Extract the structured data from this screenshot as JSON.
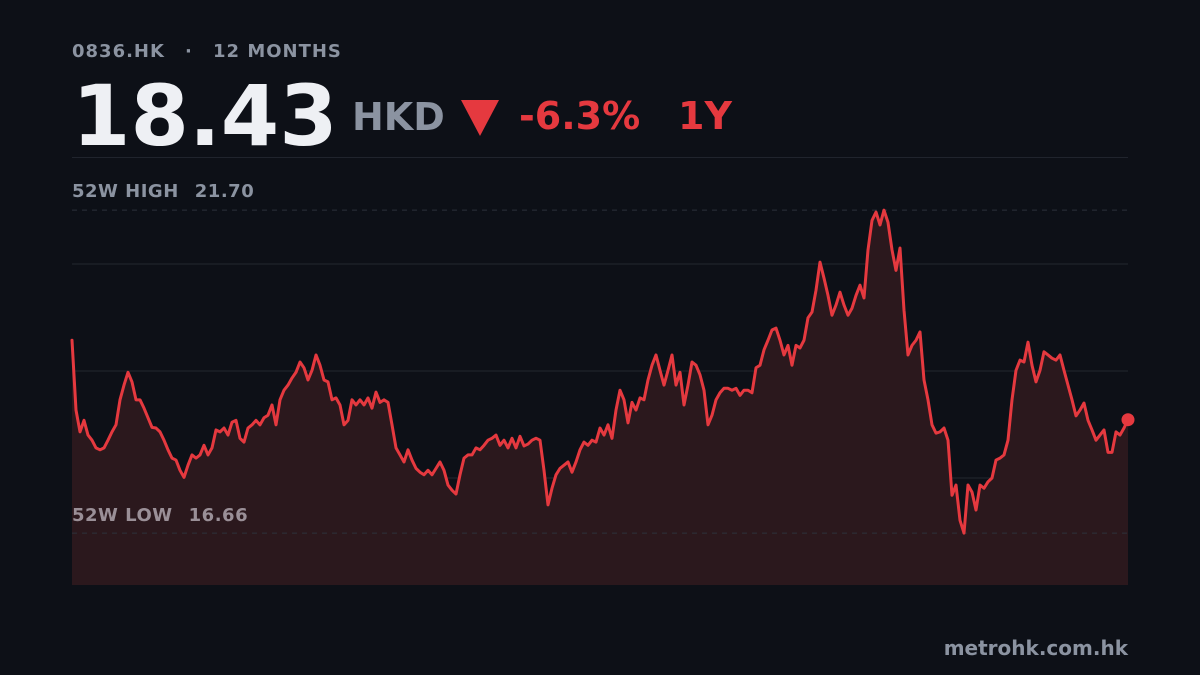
{
  "header": {
    "ticker": "0836.HK",
    "separator": "·",
    "period": "12 MONTHS",
    "price": "18.43",
    "currency": "HKD",
    "change": "-6.3%",
    "range": "1Y"
  },
  "chart_data": {
    "type": "line",
    "color": "#e5393f",
    "fill": "#2b181d",
    "values": [
      19.67,
      18.58,
      18.24,
      18.42,
      18.19,
      18.11,
      17.99,
      17.96,
      17.99,
      18.11,
      18.24,
      18.35,
      18.74,
      18.97,
      19.17,
      19.02,
      18.74,
      18.74,
      18.61,
      18.46,
      18.31,
      18.3,
      18.24,
      18.11,
      17.96,
      17.83,
      17.8,
      17.64,
      17.53,
      17.72,
      17.88,
      17.83,
      17.88,
      18.03,
      17.88,
      17.99,
      18.27,
      18.24,
      18.3,
      18.19,
      18.39,
      18.42,
      18.14,
      18.08,
      18.3,
      18.35,
      18.42,
      18.35,
      18.46,
      18.5,
      18.66,
      18.35,
      18.74,
      18.89,
      18.97,
      19.08,
      19.17,
      19.33,
      19.24,
      19.05,
      19.2,
      19.44,
      19.28,
      19.05,
      19.02,
      18.74,
      18.77,
      18.66,
      18.35,
      18.42,
      18.74,
      18.66,
      18.74,
      18.66,
      18.77,
      18.61,
      18.86,
      18.7,
      18.74,
      18.7,
      18.35,
      17.99,
      17.88,
      17.77,
      17.96,
      17.8,
      17.67,
      17.61,
      17.57,
      17.64,
      17.57,
      17.67,
      17.77,
      17.64,
      17.41,
      17.33,
      17.27,
      17.57,
      17.83,
      17.88,
      17.88,
      17.99,
      17.96,
      18.03,
      18.11,
      18.14,
      18.19,
      18.03,
      18.11,
      17.99,
      18.14,
      17.99,
      18.17,
      18.02,
      18.05,
      18.11,
      18.14,
      18.11,
      17.64,
      17.1,
      17.36,
      17.57,
      17.67,
      17.72,
      17.77,
      17.61,
      17.77,
      17.96,
      18.08,
      18.03,
      18.11,
      18.08,
      18.3,
      18.19,
      18.35,
      18.14,
      18.58,
      18.89,
      18.74,
      18.38,
      18.7,
      18.58,
      18.77,
      18.74,
      19.05,
      19.28,
      19.44,
      19.2,
      18.97,
      19.2,
      19.44,
      18.97,
      19.17,
      18.66,
      18.97,
      19.33,
      19.28,
      19.13,
      18.89,
      18.35,
      18.5,
      18.74,
      18.85,
      18.92,
      18.92,
      18.89,
      18.92,
      18.81,
      18.89,
      18.89,
      18.85,
      19.24,
      19.28,
      19.52,
      19.67,
      19.83,
      19.86,
      19.67,
      19.44,
      19.59,
      19.28,
      19.59,
      19.55,
      19.67,
      20.02,
      20.11,
      20.45,
      20.89,
      20.64,
      20.37,
      20.06,
      20.22,
      20.42,
      20.22,
      20.06,
      20.17,
      20.37,
      20.53,
      20.33,
      21.08,
      21.54,
      21.67,
      21.47,
      21.7,
      21.51,
      21.08,
      20.76,
      21.11,
      20.14,
      19.44,
      19.59,
      19.67,
      19.8,
      19.05,
      18.74,
      18.35,
      18.22,
      18.24,
      18.3,
      18.11,
      17.25,
      17.41,
      16.86,
      16.66,
      17.41,
      17.3,
      17.02,
      17.41,
      17.36,
      17.46,
      17.52,
      17.8,
      17.83,
      17.88,
      18.11,
      18.74,
      19.2,
      19.36,
      19.33,
      19.64,
      19.28,
      19.02,
      19.2,
      19.49,
      19.44,
      19.39,
      19.36,
      19.44,
      19.2,
      18.97,
      18.74,
      18.49,
      18.58,
      18.69,
      18.42,
      18.27,
      18.11,
      18.19,
      18.27,
      17.92,
      17.92,
      18.24,
      18.19,
      18.3,
      18.43
    ],
    "ylim": [
      15.85,
      22.53
    ],
    "grid": [
      17.52,
      19.19,
      20.86
    ],
    "reference_lines": [
      {
        "label": "52W HIGH",
        "value": 21.7,
        "value_label": "21.70"
      },
      {
        "label": "52W LOW",
        "value": 16.66
      }
    ]
  },
  "footer": {
    "source": "metrohk.com.hk"
  }
}
